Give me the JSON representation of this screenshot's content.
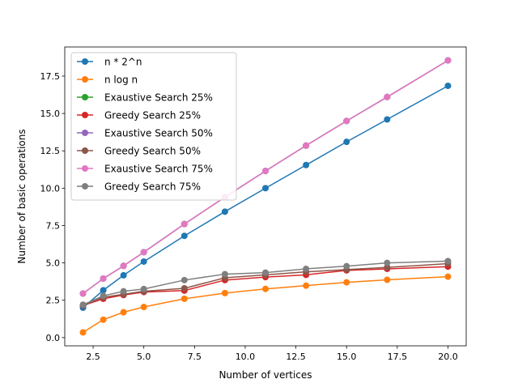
{
  "chart_data": {
    "type": "line",
    "title": "",
    "xlabel": "Number of vertices",
    "ylabel": "Number of basic operations",
    "xlim": [
      1.1,
      20.9
    ],
    "ylim": [
      -0.55,
      19.45
    ],
    "xticks": [
      2.5,
      5.0,
      7.5,
      10.0,
      12.5,
      15.0,
      17.5,
      20.0
    ],
    "xtick_labels": [
      "2.5",
      "5.0",
      "7.5",
      "10.0",
      "12.5",
      "15.0",
      "17.5",
      "20.0"
    ],
    "yticks": [
      0.0,
      2.5,
      5.0,
      7.5,
      10.0,
      12.5,
      15.0,
      17.5
    ],
    "ytick_labels": [
      "0.0",
      "2.5",
      "5.0",
      "7.5",
      "10.0",
      "12.5",
      "15.0",
      "17.5"
    ],
    "grid": false,
    "legend_position": "upper-left",
    "x": [
      2,
      3,
      4,
      5,
      7,
      9,
      11,
      13,
      15,
      17,
      20
    ],
    "series": [
      {
        "name": "n * 2^n",
        "color": "#1f77b4",
        "values": [
          2.0,
          3.17,
          4.17,
          5.09,
          6.81,
          8.43,
          10.0,
          11.55,
          13.1,
          14.6,
          16.85
        ]
      },
      {
        "name": "n log n",
        "color": "#ff7f0e",
        "values": [
          0.35,
          1.2,
          1.7,
          2.05,
          2.6,
          2.98,
          3.26,
          3.48,
          3.7,
          3.87,
          4.08
        ]
      },
      {
        "name": "Exaustive Search 25%",
        "color": "#2ca02c",
        "values": [
          2.95,
          3.95,
          4.8,
          5.72,
          7.6,
          9.4,
          11.15,
          12.85,
          14.5,
          16.1,
          18.55
        ]
      },
      {
        "name": "Greedy Search 25%",
        "color": "#d62728",
        "values": [
          2.15,
          2.6,
          2.85,
          3.05,
          3.15,
          3.85,
          4.05,
          4.2,
          4.5,
          4.6,
          4.75
        ]
      },
      {
        "name": "Exaustive Search 50%",
        "color": "#9467bd",
        "values": [
          2.95,
          3.95,
          4.8,
          5.72,
          7.6,
          9.4,
          11.15,
          12.85,
          14.5,
          16.1,
          18.55
        ]
      },
      {
        "name": "Greedy Search 50%",
        "color": "#8c564b",
        "values": [
          2.15,
          2.7,
          2.9,
          3.1,
          3.3,
          4.0,
          4.2,
          4.4,
          4.55,
          4.7,
          4.95
        ]
      },
      {
        "name": "Exaustive Search 75%",
        "color": "#e377c2",
        "values": [
          2.95,
          3.95,
          4.8,
          5.72,
          7.6,
          9.4,
          11.15,
          12.85,
          14.5,
          16.1,
          18.55
        ]
      },
      {
        "name": "Greedy Search 75%",
        "color": "#7f7f7f",
        "values": [
          2.2,
          2.8,
          3.1,
          3.25,
          3.85,
          4.25,
          4.35,
          4.6,
          4.78,
          5.0,
          5.12
        ]
      }
    ]
  }
}
